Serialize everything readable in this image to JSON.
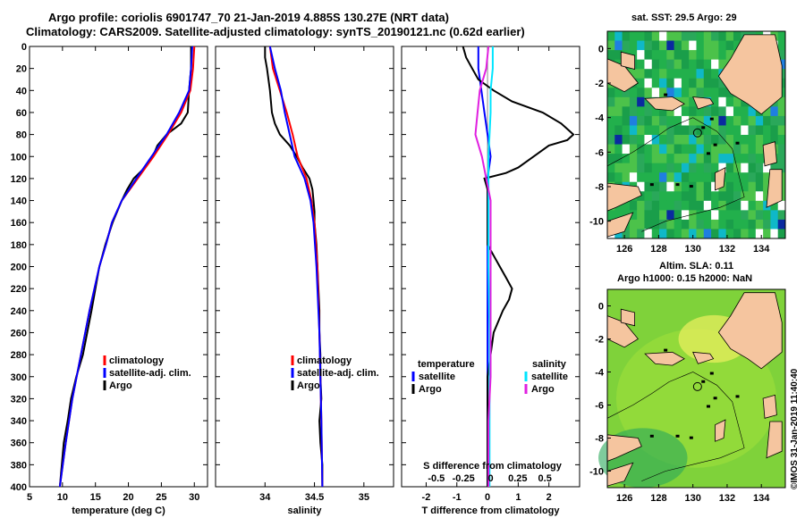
{
  "header": {
    "title_line1": "Argo profile: coriolis 6901747_70 21-Jan-2019 4.885S 130.27E (NRT data)",
    "title_line2": "Climatology: CARS2009. Satellite-adjusted climatology: synTS_20190121.nc (0.62d earlier)"
  },
  "sst_map": {
    "title": "sat. SST: 29.5 Argo: 29",
    "x_ticks": [
      "126",
      "128",
      "130",
      "132",
      "134"
    ],
    "y_ticks": [
      "0",
      "-2",
      "-4",
      "-6",
      "-8",
      "-10"
    ]
  },
  "sla_map": {
    "title_line1": "Altim. SLA: 0.11",
    "title_line2": "Argo h1000: 0.15 h2000: NaN",
    "x_ticks": [
      "126",
      "128",
      "130",
      "132",
      "134"
    ],
    "y_ticks": [
      "0",
      "-2",
      "-4",
      "-6",
      "-8",
      "-10"
    ]
  },
  "credit": "©IMOS 31-Jan-2019 11:40:40",
  "colors": {
    "climatology": "#ff0000",
    "satellite": "#0000ff",
    "argo": "#000000",
    "sal_satellite": "#00e5ff",
    "sal_clim": "#e020e0",
    "land": "#f5c59f"
  },
  "chart_data": [
    {
      "type": "line",
      "name": "temperature",
      "xlabel": "temperature (deg C)",
      "ylabel": "",
      "xlim": [
        5,
        32
      ],
      "ylim": [
        400,
        0
      ],
      "xticks": [
        "5",
        "10",
        "15",
        "20",
        "25",
        "30"
      ],
      "yticks": [
        "0",
        "20",
        "40",
        "60",
        "80",
        "100",
        "120",
        "140",
        "160",
        "180",
        "200",
        "220",
        "240",
        "260",
        "280",
        "300",
        "320",
        "340",
        "360",
        "380",
        "400"
      ],
      "legend": [
        "climatology",
        "satellite-adj. clim.",
        "Argo"
      ],
      "series": [
        {
          "name": "climatology",
          "depth": [
            0,
            10,
            20,
            40,
            60,
            80,
            100,
            120,
            140,
            160,
            180,
            200,
            240,
            280,
            320,
            360,
            400
          ],
          "values": [
            30.0,
            29.9,
            29.8,
            29.4,
            28.0,
            26.0,
            23.8,
            21.4,
            19.0,
            17.5,
            16.6,
            15.6,
            14.1,
            12.8,
            11.5,
            10.5,
            9.6
          ]
        },
        {
          "name": "satellite-adj. clim.",
          "depth": [
            0,
            10,
            20,
            40,
            60,
            80,
            100,
            120,
            140,
            160,
            180,
            200,
            240,
            280,
            320,
            360,
            400
          ],
          "values": [
            29.7,
            29.6,
            29.5,
            29.2,
            27.7,
            25.8,
            23.5,
            21.2,
            19.0,
            17.5,
            16.6,
            15.6,
            14.1,
            12.8,
            11.5,
            10.5,
            9.6
          ]
        },
        {
          "name": "Argo",
          "depth": [
            0,
            10,
            20,
            40,
            60,
            70,
            80,
            90,
            100,
            110,
            120,
            130,
            140,
            160,
            180,
            200,
            240,
            280,
            300,
            320,
            340,
            360,
            380,
            400
          ],
          "values": [
            29.5,
            29.5,
            29.5,
            29.2,
            29.0,
            28.0,
            25.8,
            24.4,
            23.7,
            22.5,
            20.8,
            19.8,
            19.0,
            17.6,
            16.5,
            15.6,
            14.4,
            13.1,
            12.1,
            11.3,
            10.8,
            10.2,
            9.9,
            9.6
          ]
        }
      ]
    },
    {
      "type": "line",
      "name": "salinity",
      "xlabel": "salinity",
      "ylabel": "",
      "xlim": [
        33.5,
        35.3
      ],
      "ylim": [
        400,
        0
      ],
      "xticks": [
        "34",
        "34.5",
        "35"
      ],
      "legend": [
        "climatology",
        "satellite-adj. clim.",
        "Argo"
      ],
      "series": [
        {
          "name": "climatology",
          "depth": [
            0,
            20,
            40,
            60,
            80,
            100,
            120,
            140,
            160,
            200,
            260,
            300,
            340,
            400
          ],
          "values": [
            34.05,
            34.08,
            34.15,
            34.22,
            34.28,
            34.33,
            34.42,
            34.47,
            34.5,
            34.53,
            34.55,
            34.56,
            34.57,
            34.58
          ]
        },
        {
          "name": "satellite-adj. clim.",
          "depth": [
            0,
            20,
            40,
            60,
            80,
            100,
            120,
            140,
            160,
            200,
            260,
            300,
            340,
            400
          ],
          "values": [
            34.05,
            34.1,
            34.16,
            34.2,
            34.25,
            34.3,
            34.4,
            34.46,
            34.49,
            34.52,
            34.55,
            34.56,
            34.57,
            34.58
          ]
        },
        {
          "name": "Argo",
          "depth": [
            0,
            10,
            20,
            40,
            60,
            70,
            80,
            90,
            100,
            110,
            120,
            130,
            140,
            150,
            160,
            180,
            200,
            220,
            240,
            260,
            280,
            300,
            320,
            340,
            360,
            380,
            400
          ],
          "values": [
            34.0,
            34.0,
            34.02,
            34.05,
            34.07,
            34.1,
            34.15,
            34.25,
            34.32,
            34.38,
            34.45,
            34.48,
            34.49,
            34.5,
            34.5,
            34.52,
            34.53,
            34.54,
            34.55,
            34.55,
            34.56,
            34.56,
            34.57,
            34.55,
            34.56,
            34.58,
            34.58
          ]
        }
      ]
    },
    {
      "type": "line",
      "name": "difference",
      "xlabel": "T difference from climatology",
      "xlabel_top": "S difference from climatology",
      "ylabel": "",
      "xlim": [
        -2.8,
        3.0
      ],
      "ylim": [
        400,
        0
      ],
      "xticks": [
        "-2",
        "-1",
        "0",
        "1",
        "2"
      ],
      "xticks_top": [
        "-0.5",
        "-0.25",
        "0",
        "0.25",
        "0.5"
      ],
      "legend_left_title": "temperature",
      "legend_left": [
        "satellite",
        "Argo"
      ],
      "legend_right_title": "salinity",
      "legend_right": [
        "satellite",
        "Argo"
      ],
      "series": [
        {
          "name": "temperature satellite",
          "depth": [
            0,
            20,
            40,
            60,
            80,
            100,
            120,
            140,
            160,
            200,
            260,
            300,
            340,
            400
          ],
          "values": [
            -0.3,
            -0.3,
            -0.2,
            -0.1,
            0.0,
            0.1,
            0.0,
            0.0,
            0.0,
            0.0,
            0.0,
            0.0,
            0.0,
            0.0
          ]
        },
        {
          "name": "temperature Argo",
          "depth": [
            0,
            10,
            20,
            30,
            40,
            50,
            60,
            70,
            80,
            85,
            90,
            100,
            110,
            115,
            120,
            130,
            150,
            160,
            170,
            180,
            190,
            200,
            210,
            220,
            230,
            240,
            260,
            280,
            300,
            340,
            400
          ],
          "values": [
            -0.8,
            -0.7,
            -0.5,
            -0.3,
            0.2,
            0.8,
            1.8,
            2.4,
            2.8,
            2.6,
            2.0,
            1.5,
            1.0,
            0.6,
            -0.1,
            0.0,
            0.0,
            0.0,
            0.0,
            0.0,
            0.2,
            0.4,
            0.6,
            0.8,
            0.7,
            0.5,
            0.2,
            0.1,
            0.0,
            0.0,
            0.0
          ]
        },
        {
          "name": "salinity satellite",
          "depth": [
            0,
            20,
            40,
            60,
            80,
            100,
            120,
            140,
            160,
            200,
            260,
            300,
            340,
            400
          ],
          "values": [
            0.02,
            0.02,
            0.0,
            0.0,
            -0.01,
            -0.02,
            -0.02,
            -0.02,
            -0.02,
            -0.02,
            -0.01,
            -0.01,
            -0.01,
            -0.01
          ]
        },
        {
          "name": "salinity Argo",
          "depth": [
            0,
            20,
            40,
            60,
            80,
            100,
            120,
            140,
            160,
            200,
            260,
            300,
            340,
            400
          ],
          "values": [
            -0.02,
            -0.04,
            -0.1,
            -0.12,
            -0.14,
            -0.08,
            -0.04,
            0.0,
            0.0,
            0.0,
            0.0,
            0.0,
            -0.02,
            -0.02
          ]
        }
      ]
    }
  ]
}
